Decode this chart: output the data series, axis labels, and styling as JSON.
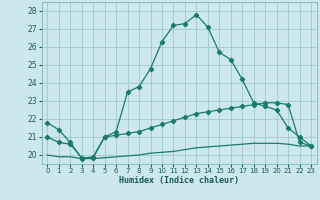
{
  "xlabel": "Humidex (Indice chaleur)",
  "bg_color": "#cce8ec",
  "grid_color": "#a0c8cc",
  "line_color": "#1a7a6e",
  "xlim": [
    -0.5,
    23.5
  ],
  "ylim": [
    19.5,
    28.5
  ],
  "yticks": [
    20,
    21,
    22,
    23,
    24,
    25,
    26,
    27,
    28
  ],
  "xticks": [
    0,
    1,
    2,
    3,
    4,
    5,
    6,
    7,
    8,
    9,
    10,
    11,
    12,
    13,
    14,
    15,
    16,
    17,
    18,
    19,
    20,
    21,
    22,
    23
  ],
  "curve1_x": [
    0,
    1,
    2,
    3,
    4,
    5,
    6,
    7,
    8,
    9,
    10,
    11,
    12,
    13,
    14,
    15,
    16,
    17,
    18,
    19,
    20,
    21,
    22,
    23
  ],
  "curve1_y": [
    21.8,
    21.4,
    20.7,
    19.8,
    19.9,
    21.0,
    21.3,
    23.5,
    23.8,
    24.8,
    26.3,
    27.2,
    27.3,
    27.8,
    27.1,
    25.7,
    25.3,
    24.2,
    22.9,
    22.7,
    22.5,
    21.5,
    21.0,
    20.5
  ],
  "curve2_x": [
    0,
    1,
    2,
    3,
    4,
    5,
    6,
    7,
    8,
    9,
    10,
    11,
    12,
    13,
    14,
    15,
    16,
    17,
    18,
    19,
    20,
    21,
    22,
    23
  ],
  "curve2_y": [
    21.0,
    20.7,
    20.6,
    19.85,
    19.85,
    21.0,
    21.1,
    21.2,
    21.3,
    21.5,
    21.7,
    21.9,
    22.1,
    22.3,
    22.4,
    22.5,
    22.6,
    22.7,
    22.8,
    22.9,
    22.9,
    22.8,
    20.7,
    20.5
  ],
  "curve3_x": [
    0,
    1,
    2,
    3,
    4,
    5,
    6,
    7,
    8,
    9,
    10,
    11,
    12,
    13,
    14,
    15,
    16,
    17,
    18,
    19,
    20,
    21,
    22,
    23
  ],
  "curve3_y": [
    20.0,
    19.9,
    19.9,
    19.8,
    19.8,
    19.85,
    19.9,
    19.95,
    20.0,
    20.1,
    20.15,
    20.2,
    20.3,
    20.4,
    20.45,
    20.5,
    20.55,
    20.6,
    20.65,
    20.65,
    20.65,
    20.6,
    20.5,
    20.5
  ]
}
